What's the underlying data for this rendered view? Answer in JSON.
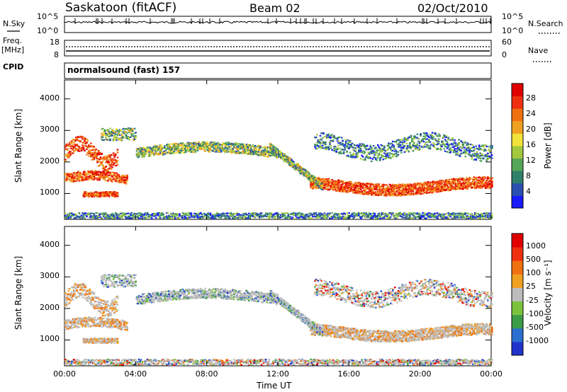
{
  "header": {
    "station": "Saskatoon (fitACF)",
    "beam": "Beam 02",
    "date": "02/Oct/2010"
  },
  "strips": {
    "nsky_label": "N.Sky",
    "nsearch_label": "N.Search",
    "freq_label": "Freq.",
    "freq_unit": "[MHz]",
    "nave_label": "Nave",
    "cpid_label": "CPID",
    "cpid_text": "normalsound (fast) 157",
    "noise_ticks": [
      "10^5",
      "10^0"
    ],
    "freq_ticks": [
      "18",
      "8"
    ],
    "nave_ticks": [
      "60",
      "0"
    ]
  },
  "chart_data": [
    {
      "type": "heatmap",
      "title": "",
      "xlabel": "Time UT",
      "ylabel": "Slant Range [km]",
      "x_ticks": [
        "00:00",
        "04:00",
        "08:00",
        "12:00",
        "16:00",
        "20:00",
        "00:00"
      ],
      "y_ticks": [
        "1000",
        "2000",
        "3000",
        "4000"
      ],
      "xlim_hours": [
        0,
        24
      ],
      "ylim_km": [
        180,
        4600
      ],
      "colorbar": {
        "label": "Power [dB]",
        "ticks": [
          "4",
          "8",
          "12",
          "16",
          "20",
          "24",
          "28"
        ],
        "range": [
          0,
          30
        ],
        "colors": [
          "#1a1aff",
          "#2a4fb0",
          "#2f7f6a",
          "#55a55a",
          "#a3c83e",
          "#f2e23a",
          "#f0a020",
          "#f07010",
          "#ee3010",
          "#e00000"
        ]
      }
    },
    {
      "type": "heatmap",
      "title": "",
      "xlabel": "Time UT",
      "ylabel": "Slant Range [km]",
      "x_ticks": [
        "00:00",
        "04:00",
        "08:00",
        "12:00",
        "16:00",
        "20:00",
        "00:00"
      ],
      "y_ticks": [
        "1000",
        "2000",
        "3000",
        "4000"
      ],
      "xlim_hours": [
        0,
        24
      ],
      "ylim_km": [
        180,
        4600
      ],
      "colorbar": {
        "label": "Velocity [m s⁻¹]",
        "ticks": [
          "1000",
          "500",
          "100",
          "25",
          "-25",
          "-100",
          "-500",
          "-1000"
        ],
        "range": [
          -1200,
          1200
        ],
        "colors": [
          "#2233cc",
          "#2d6fd0",
          "#3c9b47",
          "#7cc23c",
          "#bcbcbc",
          "#f0a020",
          "#f07010",
          "#ee3010",
          "#e00000"
        ]
      }
    }
  ]
}
